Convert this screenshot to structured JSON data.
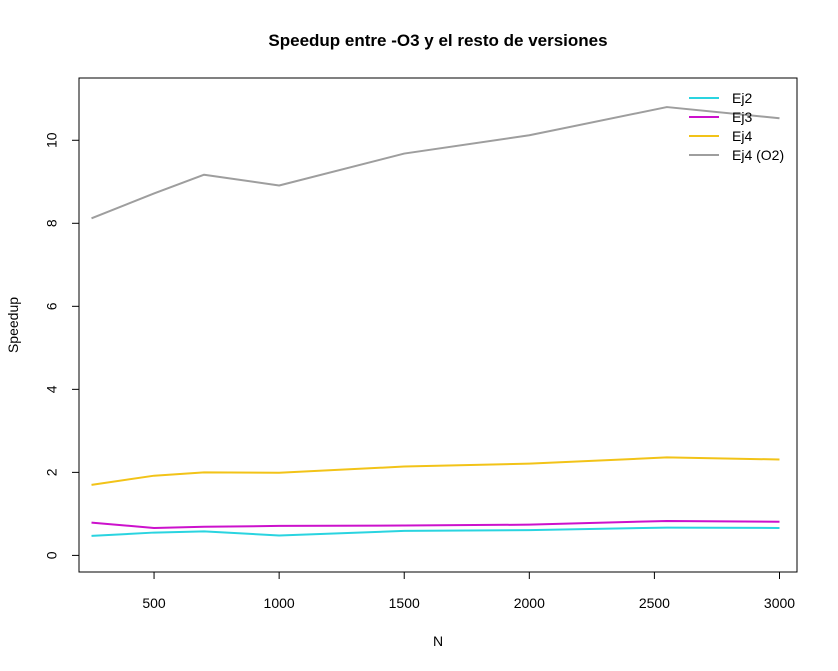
{
  "chart_data": {
    "type": "line",
    "title": "Speedup entre -O3 y el resto de versiones",
    "xlabel": "N",
    "ylabel": "Speedup",
    "xlim": [
      200,
      3070
    ],
    "ylim": [
      -0.4,
      11.5
    ],
    "xticks": [
      500,
      1000,
      1500,
      2000,
      2500,
      3000
    ],
    "yticks": [
      0,
      2,
      4,
      6,
      8,
      10
    ],
    "x": [
      250,
      500,
      700,
      1000,
      1500,
      2000,
      2550,
      3000
    ],
    "legend_position": "top-right",
    "grid": false,
    "series": [
      {
        "name": "Ej2",
        "color": "#2ad4e0",
        "values": [
          0.47,
          0.55,
          0.58,
          0.48,
          0.59,
          0.61,
          0.67,
          0.66
        ]
      },
      {
        "name": "Ej3",
        "color": "#cc11cc",
        "values": [
          0.79,
          0.66,
          0.69,
          0.71,
          0.72,
          0.74,
          0.83,
          0.81
        ]
      },
      {
        "name": "Ej4",
        "color": "#f2c318",
        "values": [
          1.7,
          1.92,
          2.0,
          1.99,
          2.14,
          2.21,
          2.36,
          2.31
        ]
      },
      {
        "name": "Ej4 (O2)",
        "color": "#9e9e9e",
        "values": [
          8.12,
          8.72,
          9.17,
          8.91,
          9.68,
          10.12,
          10.8,
          10.53
        ]
      }
    ]
  }
}
